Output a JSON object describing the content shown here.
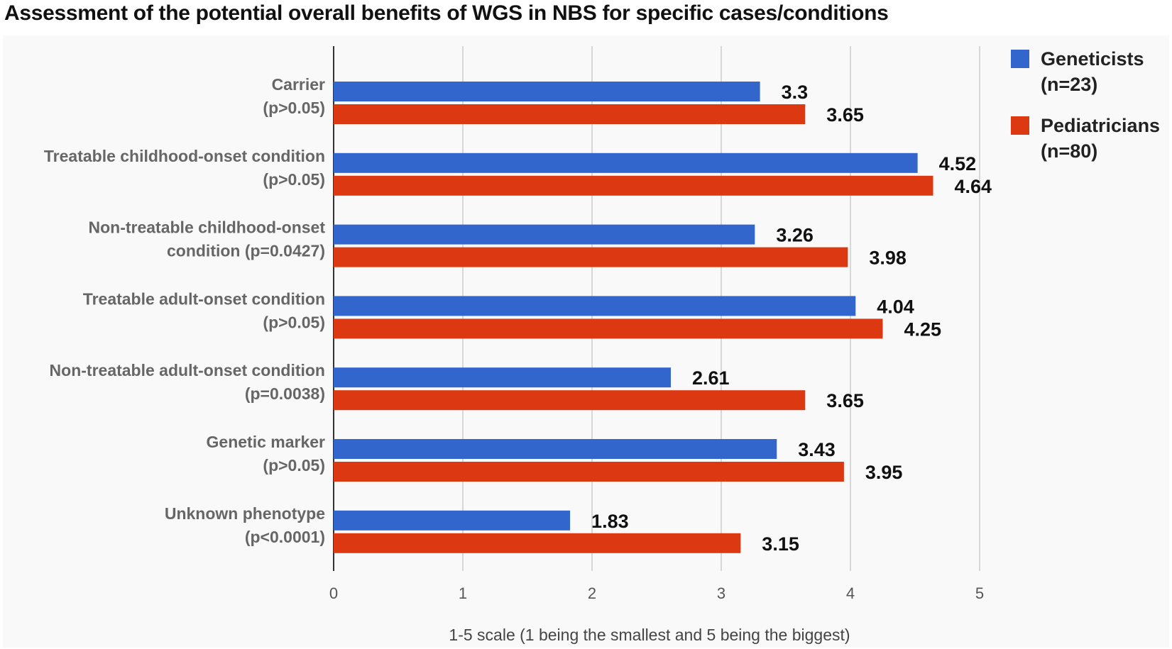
{
  "chart_data": {
    "type": "bar",
    "orientation": "horizontal",
    "title": "Assessment of the potential overall benefits of WGS in NBS for specific cases/conditions",
    "xlabel": "1-5 scale (1 being the smallest and 5 being the biggest)",
    "ylabel": "",
    "xlim": [
      0,
      5
    ],
    "ticks": [
      "0",
      "1",
      "2",
      "3",
      "4",
      "5"
    ],
    "grid": true,
    "legend_position": "top-right",
    "categories": [
      [
        "Carrier",
        "(p>0.05)"
      ],
      [
        "Treatable childhood-onset condition",
        "(p>0.05)"
      ],
      [
        "Non-treatable childhood-onset",
        "condition (p=0.0427)"
      ],
      [
        "Treatable adult-onset condition",
        "(p>0.05)"
      ],
      [
        "Non-treatable adult-onset condition",
        "(p=0.0038)"
      ],
      [
        "Genetic marker",
        "(p>0.05)"
      ],
      [
        "Unknown phenotype",
        "(p<0.0001)"
      ]
    ],
    "series": [
      {
        "name": "Geneticists",
        "legend_lines": [
          "Geneticists",
          "(n=23)"
        ],
        "color": "#3366cc",
        "values": [
          3.3,
          4.52,
          3.26,
          4.04,
          2.61,
          3.43,
          1.83
        ],
        "labels": [
          "3.3",
          "4.52",
          "3.26",
          "4.04",
          "2.61",
          "3.43",
          "1.83"
        ]
      },
      {
        "name": "Pediatricians",
        "legend_lines": [
          "Pediatricians",
          "(n=80)"
        ],
        "color": "#dc3912",
        "values": [
          3.65,
          4.64,
          3.98,
          4.25,
          3.65,
          3.95,
          3.15
        ],
        "labels": [
          "3.65",
          "4.64",
          "3.98",
          "4.25",
          "3.65",
          "3.95",
          "3.15"
        ]
      }
    ]
  }
}
